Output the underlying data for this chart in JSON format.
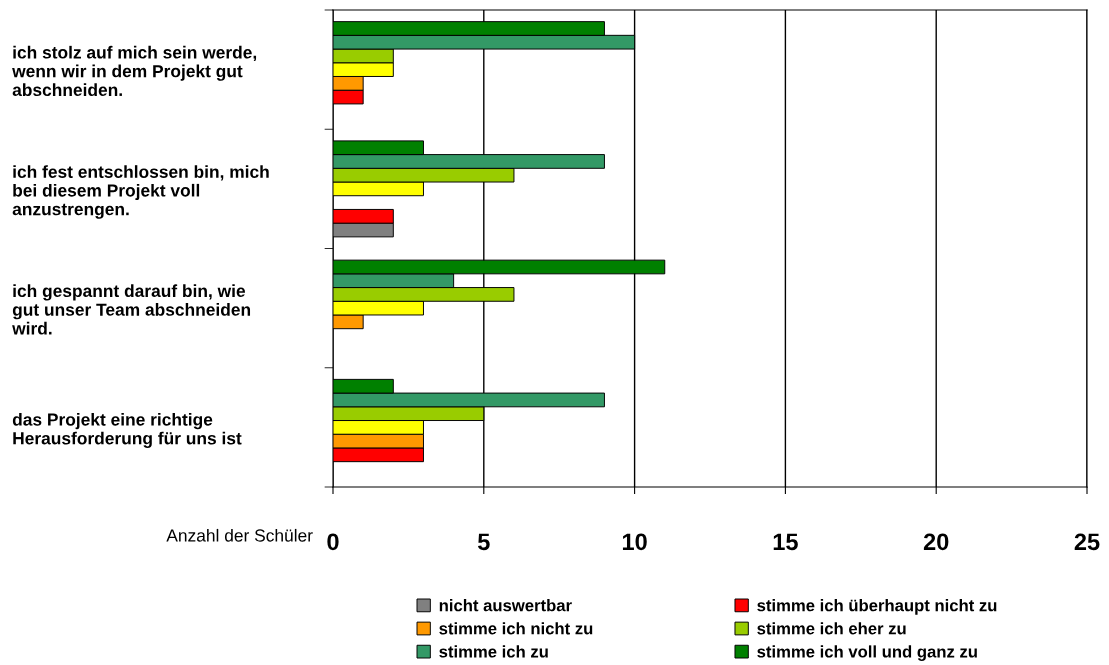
{
  "chart_data": {
    "type": "bar",
    "orientation": "horizontal",
    "xlabel": "Anzahl der Schüler",
    "categories": [
      "ich stolz auf mich sein werde,\nwenn wir in dem Projekt gut\nabschneiden.",
      "ich fest entschlossen bin, mich\nbei diesem Projekt voll\nanzustrengen.",
      "ich gespannt darauf bin, wie\ngut unser Team abschneiden\nwird.",
      "das Projekt eine richtige\nHerausforderung für uns ist"
    ],
    "series": [
      {
        "name": "nicht auswertbar",
        "color": "#808080",
        "values": [
          null,
          2,
          null,
          null
        ]
      },
      {
        "name": "stimme ich überhaupt nicht zu",
        "color": "#ff0000",
        "values": [
          1,
          2,
          null,
          3
        ]
      },
      {
        "name": "stimme ich nicht zu",
        "color": "#ff9900",
        "values": [
          1,
          null,
          1,
          3
        ]
      },
      {
        "color": "#ffff00",
        "values": [
          2,
          3,
          3,
          3
        ]
      },
      {
        "name": "stimme ich eher zu",
        "color": "#99cc00",
        "values": [
          2,
          6,
          6,
          5
        ]
      },
      {
        "name": "stimme ich zu",
        "color": "#339966",
        "values": [
          10,
          9,
          4,
          9
        ]
      },
      {
        "name": "stimme ich voll und ganz zu",
        "color": "#008000",
        "values": [
          9,
          3,
          11,
          2
        ]
      }
    ],
    "xlim": [
      0,
      25
    ],
    "xticks": [
      0,
      5,
      10,
      15,
      20,
      25
    ],
    "grid": "x",
    "legend": "bottom"
  }
}
